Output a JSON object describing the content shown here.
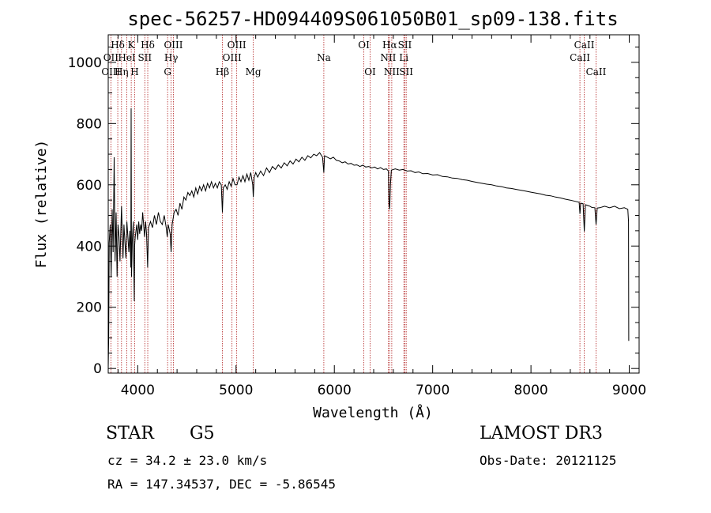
{
  "chart_data": {
    "type": "line",
    "title": "spec-56257-HD094409S061050B01_sp09-138.fits",
    "xlabel": "Wavelength (Å)",
    "ylabel": "Flux (relative)",
    "xlim": [
      3700,
      9100
    ],
    "ylim": [
      -15,
      1090
    ],
    "x_ticks": [
      4000,
      5000,
      6000,
      7000,
      8000,
      9000
    ],
    "y_ticks": [
      0,
      200,
      400,
      600,
      800,
      1000
    ],
    "series": [
      {
        "name": "flux",
        "points": [
          [
            3700,
            0
          ],
          [
            3705,
            100
          ],
          [
            3710,
            410
          ],
          [
            3720,
            470
          ],
          [
            3730,
            300
          ],
          [
            3740,
            520
          ],
          [
            3750,
            380
          ],
          [
            3760,
            690
          ],
          [
            3770,
            350
          ],
          [
            3780,
            510
          ],
          [
            3790,
            300
          ],
          [
            3800,
            470
          ],
          [
            3810,
            430
          ],
          [
            3820,
            350
          ],
          [
            3835,
            530
          ],
          [
            3850,
            360
          ],
          [
            3860,
            470
          ],
          [
            3870,
            410
          ],
          [
            3880,
            360
          ],
          [
            3890,
            480
          ],
          [
            3900,
            430
          ],
          [
            3910,
            380
          ],
          [
            3920,
            450
          ],
          [
            3930,
            330
          ],
          [
            3933,
            850
          ],
          [
            3937,
            300
          ],
          [
            3945,
            420
          ],
          [
            3955,
            480
          ],
          [
            3965,
            220
          ],
          [
            3968,
            400
          ],
          [
            3975,
            430
          ],
          [
            3990,
            470
          ],
          [
            4000,
            420
          ],
          [
            4010,
            480
          ],
          [
            4020,
            440
          ],
          [
            4030,
            470
          ],
          [
            4040,
            450
          ],
          [
            4050,
            510
          ],
          [
            4060,
            470
          ],
          [
            4070,
            430
          ],
          [
            4080,
            480
          ],
          [
            4090,
            440
          ],
          [
            4101,
            330
          ],
          [
            4110,
            460
          ],
          [
            4130,
            480
          ],
          [
            4150,
            460
          ],
          [
            4170,
            500
          ],
          [
            4190,
            470
          ],
          [
            4210,
            510
          ],
          [
            4230,
            480
          ],
          [
            4250,
            470
          ],
          [
            4270,
            500
          ],
          [
            4290,
            460
          ],
          [
            4300,
            430
          ],
          [
            4310,
            470
          ],
          [
            4330,
            440
          ],
          [
            4340,
            380
          ],
          [
            4350,
            470
          ],
          [
            4370,
            510
          ],
          [
            4390,
            520
          ],
          [
            4410,
            500
          ],
          [
            4430,
            540
          ],
          [
            4450,
            520
          ],
          [
            4470,
            560
          ],
          [
            4490,
            550
          ],
          [
            4510,
            575
          ],
          [
            4530,
            565
          ],
          [
            4550,
            580
          ],
          [
            4570,
            560
          ],
          [
            4590,
            590
          ],
          [
            4610,
            570
          ],
          [
            4630,
            595
          ],
          [
            4650,
            580
          ],
          [
            4670,
            600
          ],
          [
            4690,
            580
          ],
          [
            4710,
            605
          ],
          [
            4730,
            590
          ],
          [
            4750,
            610
          ],
          [
            4770,
            590
          ],
          [
            4790,
            605
          ],
          [
            4810,
            590
          ],
          [
            4830,
            610
          ],
          [
            4850,
            600
          ],
          [
            4861,
            510
          ],
          [
            4870,
            590
          ],
          [
            4890,
            600
          ],
          [
            4910,
            585
          ],
          [
            4930,
            610
          ],
          [
            4950,
            595
          ],
          [
            4970,
            620
          ],
          [
            4990,
            600
          ],
          [
            5010,
            600
          ],
          [
            5030,
            625
          ],
          [
            5050,
            610
          ],
          [
            5070,
            630
          ],
          [
            5090,
            610
          ],
          [
            5110,
            635
          ],
          [
            5130,
            615
          ],
          [
            5150,
            640
          ],
          [
            5170,
            600
          ],
          [
            5175,
            560
          ],
          [
            5185,
            625
          ],
          [
            5200,
            640
          ],
          [
            5220,
            625
          ],
          [
            5250,
            645
          ],
          [
            5280,
            630
          ],
          [
            5310,
            655
          ],
          [
            5340,
            640
          ],
          [
            5370,
            660
          ],
          [
            5400,
            650
          ],
          [
            5430,
            665
          ],
          [
            5460,
            655
          ],
          [
            5490,
            672
          ],
          [
            5520,
            662
          ],
          [
            5550,
            678
          ],
          [
            5580,
            668
          ],
          [
            5610,
            684
          ],
          [
            5640,
            675
          ],
          [
            5670,
            690
          ],
          [
            5700,
            680
          ],
          [
            5730,
            695
          ],
          [
            5760,
            688
          ],
          [
            5790,
            700
          ],
          [
            5820,
            695
          ],
          [
            5850,
            705
          ],
          [
            5880,
            690
          ],
          [
            5893,
            640
          ],
          [
            5900,
            695
          ],
          [
            5930,
            690
          ],
          [
            5960,
            685
          ],
          [
            5990,
            690
          ],
          [
            6020,
            680
          ],
          [
            6050,
            678
          ],
          [
            6080,
            672
          ],
          [
            6110,
            675
          ],
          [
            6140,
            668
          ],
          [
            6170,
            670
          ],
          [
            6200,
            664
          ],
          [
            6230,
            665
          ],
          [
            6260,
            660
          ],
          [
            6290,
            664
          ],
          [
            6320,
            658
          ],
          [
            6350,
            660
          ],
          [
            6380,
            655
          ],
          [
            6410,
            658
          ],
          [
            6440,
            652
          ],
          [
            6470,
            656
          ],
          [
            6500,
            650
          ],
          [
            6530,
            652
          ],
          [
            6550,
            645
          ],
          [
            6556,
            540
          ],
          [
            6563,
            520
          ],
          [
            6570,
            600
          ],
          [
            6580,
            648
          ],
          [
            6620,
            652
          ],
          [
            6660,
            648
          ],
          [
            6700,
            650
          ],
          [
            6740,
            645
          ],
          [
            6780,
            646
          ],
          [
            6820,
            640
          ],
          [
            6860,
            642
          ],
          [
            6900,
            636
          ],
          [
            6950,
            637
          ],
          [
            7000,
            632
          ],
          [
            7050,
            633
          ],
          [
            7100,
            627
          ],
          [
            7150,
            626
          ],
          [
            7200,
            622
          ],
          [
            7250,
            621
          ],
          [
            7300,
            617
          ],
          [
            7350,
            615
          ],
          [
            7400,
            611
          ],
          [
            7450,
            608
          ],
          [
            7500,
            605
          ],
          [
            7550,
            602
          ],
          [
            7600,
            600
          ],
          [
            7650,
            596
          ],
          [
            7700,
            594
          ],
          [
            7750,
            590
          ],
          [
            7800,
            588
          ],
          [
            7850,
            585
          ],
          [
            7900,
            582
          ],
          [
            7950,
            579
          ],
          [
            8000,
            576
          ],
          [
            8050,
            573
          ],
          [
            8100,
            570
          ],
          [
            8150,
            566
          ],
          [
            8200,
            564
          ],
          [
            8250,
            560
          ],
          [
            8300,
            557
          ],
          [
            8350,
            553
          ],
          [
            8400,
            550
          ],
          [
            8450,
            546
          ],
          [
            8490,
            543
          ],
          [
            8498,
            505
          ],
          [
            8506,
            540
          ],
          [
            8530,
            538
          ],
          [
            8542,
            448
          ],
          [
            8554,
            535
          ],
          [
            8580,
            532
          ],
          [
            8600,
            530
          ],
          [
            8620,
            526
          ],
          [
            8650,
            525
          ],
          [
            8662,
            470
          ],
          [
            8674,
            524
          ],
          [
            8700,
            525
          ],
          [
            8750,
            530
          ],
          [
            8800,
            525
          ],
          [
            8850,
            530
          ],
          [
            8900,
            522
          ],
          [
            8950,
            525
          ],
          [
            8985,
            520
          ],
          [
            8992,
            480
          ],
          [
            8995,
            90
          ]
        ]
      }
    ],
    "spectral_lines": [
      {
        "label": "Hδ",
        "wave": 3797,
        "row": 0
      },
      {
        "label": "OII",
        "wave": 3727,
        "row": 1
      },
      {
        "label": "OIII",
        "wave": 3727,
        "row": 2
      },
      {
        "label": "K",
        "wave": 3934,
        "row": 0
      },
      {
        "label": "HeI",
        "wave": 3889,
        "row": 1
      },
      {
        "label": "Hη",
        "wave": 3835,
        "row": 2
      },
      {
        "label": "SII",
        "wave": 4072,
        "row": 1
      },
      {
        "label": "H",
        "wave": 3969,
        "row": 2
      },
      {
        "label": "Hδ",
        "wave": 4102,
        "row": 0
      },
      {
        "label": "OIII",
        "wave": 4363,
        "row": 0
      },
      {
        "label": "Hγ",
        "wave": 4340,
        "row": 1
      },
      {
        "label": "G",
        "wave": 4304,
        "row": 2
      },
      {
        "label": "OIII",
        "wave": 5007,
        "row": 0
      },
      {
        "label": "OIII",
        "wave": 4959,
        "row": 1
      },
      {
        "label": "Hβ",
        "wave": 4861,
        "row": 2
      },
      {
        "label": "Mg",
        "wave": 5175,
        "row": 2
      },
      {
        "label": "Na",
        "wave": 5893,
        "row": 1
      },
      {
        "label": "OI",
        "wave": 6300,
        "row": 0
      },
      {
        "label": "OI",
        "wave": 6364,
        "row": 2
      },
      {
        "label": "Hα",
        "wave": 6563,
        "row": 0
      },
      {
        "label": "NII",
        "wave": 6548,
        "row": 1
      },
      {
        "label": "NII",
        "wave": 6584,
        "row": 2
      },
      {
        "label": "SII",
        "wave": 6717,
        "row": 0
      },
      {
        "label": "Li",
        "wave": 6707,
        "row": 1
      },
      {
        "label": "SII",
        "wave": 6731,
        "row": 2
      },
      {
        "label": "CaII",
        "wave": 8542,
        "row": 0
      },
      {
        "label": "CaII",
        "wave": 8498,
        "row": 1
      },
      {
        "label": "CaII",
        "wave": 8662,
        "row": 2
      }
    ]
  },
  "info": {
    "object_type": "STAR",
    "subclass": "G5",
    "survey": "LAMOST DR3",
    "redshift_line": "cz = 34.2 ± 23.0 km/s",
    "obs_date": "Obs-Date: 20121125",
    "coords": "RA = 147.34537, DEC =  -5.86545"
  }
}
